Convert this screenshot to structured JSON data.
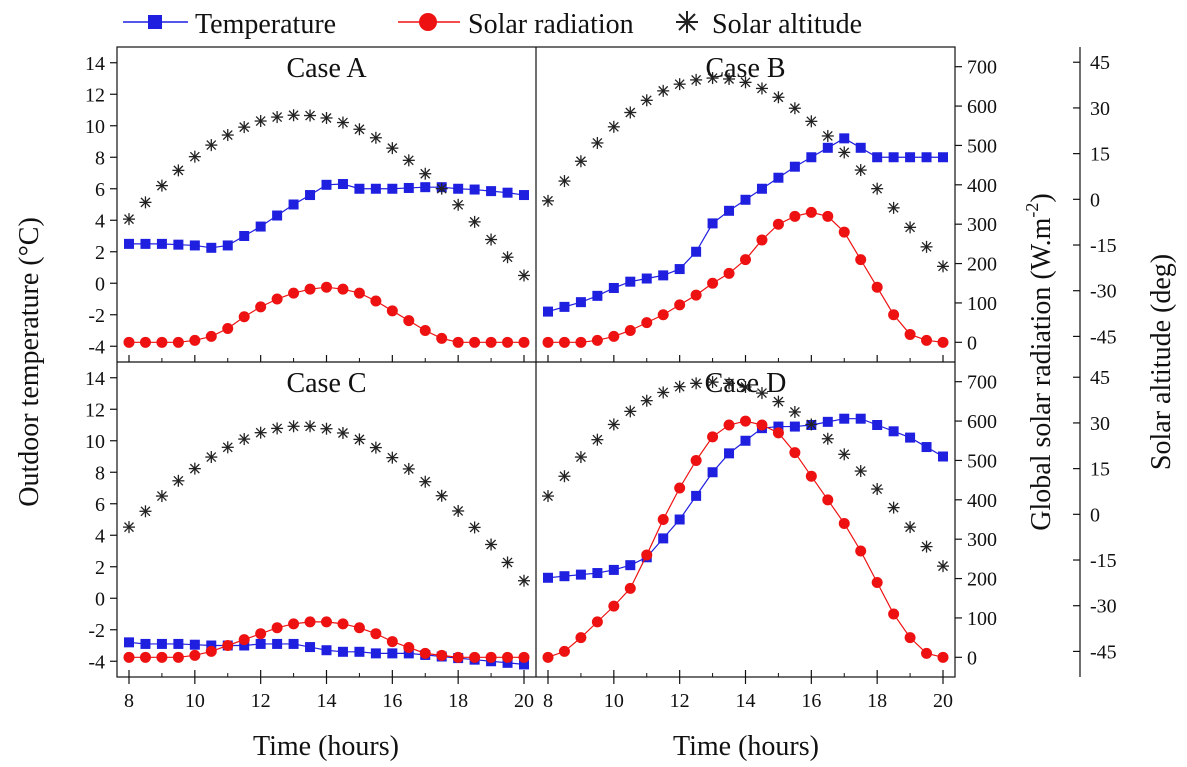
{
  "legend": {
    "temperature": "Temperature",
    "radiation": "Solar radiation",
    "altitude": "Solar altitude"
  },
  "axes": {
    "ylabel_left": "Outdoor temperature (°C)",
    "ylabel_right_radiation": "Global solar radiation (W.m",
    "ylabel_right_radiation_exp": "-2",
    "ylabel_right_radiation_end": ")",
    "ylabel_right_altitude": "Solar altitude (deg)",
    "xlabel": "Time (hours)"
  },
  "colors": {
    "temperature": "#1f1fe0",
    "radiation": "#ee1111",
    "altitude": "#222222"
  },
  "chart_data": [
    {
      "type": "line",
      "title": "Case A",
      "xlim": [
        8,
        20
      ],
      "ylim_temperature": [
        -5,
        15
      ],
      "ylim_radiation": [
        -50,
        750
      ],
      "ylim_altitude": [
        -53.4,
        50
      ],
      "x": [
        8,
        8.5,
        9,
        9.5,
        10,
        10.5,
        11,
        11.5,
        12,
        12.5,
        13,
        13.5,
        14,
        14.5,
        15,
        15.5,
        16,
        16.5,
        17,
        17.5,
        18,
        18.5,
        19,
        19.5,
        20
      ],
      "series": [
        {
          "name": "Temperature",
          "axis": "left",
          "values": [
            2.5,
            2.5,
            2.5,
            2.45,
            2.4,
            2.25,
            2.4,
            3.0,
            3.6,
            4.3,
            5.0,
            5.6,
            6.25,
            6.3,
            6.0,
            6.0,
            6.0,
            6.05,
            6.1,
            6.1,
            6.0,
            5.95,
            5.85,
            5.75,
            5.6
          ]
        },
        {
          "name": "Solar radiation",
          "axis": "radiation",
          "values": [
            0,
            0,
            0,
            0,
            5,
            15,
            35,
            65,
            90,
            110,
            125,
            135,
            140,
            135,
            125,
            105,
            80,
            55,
            30,
            10,
            0,
            0,
            0,
            0,
            0
          ]
        },
        {
          "name": "Solar altitude",
          "axis": "altitude",
          "values": [
            -6.5,
            -1.0,
            4.5,
            9.5,
            14.0,
            17.8,
            21.1,
            23.7,
            25.7,
            27.0,
            27.6,
            27.5,
            26.7,
            25.2,
            23.0,
            20.2,
            16.8,
            12.8,
            8.4,
            3.5,
            -1.8,
            -7.4,
            -13.2,
            -19.0,
            -25.0
          ]
        }
      ]
    },
    {
      "type": "line",
      "title": "Case B",
      "xlim": [
        8,
        20
      ],
      "ylim_temperature": [
        -5,
        15
      ],
      "ylim_radiation": [
        -50,
        750
      ],
      "ylim_altitude": [
        -53.4,
        50
      ],
      "x": [
        8,
        8.5,
        9,
        9.5,
        10,
        10.5,
        11,
        11.5,
        12,
        12.5,
        13,
        13.5,
        14,
        14.5,
        15,
        15.5,
        16,
        16.5,
        17,
        17.5,
        18,
        18.5,
        19,
        19.5,
        20
      ],
      "series": [
        {
          "name": "Temperature",
          "axis": "left",
          "values": [
            -1.8,
            -1.5,
            -1.2,
            -0.8,
            -0.3,
            0.1,
            0.3,
            0.5,
            0.9,
            2.0,
            3.8,
            4.6,
            5.3,
            6.0,
            6.7,
            7.4,
            8.0,
            8.6,
            9.2,
            8.6,
            8.0,
            8.0,
            8.0,
            8.0,
            8.0
          ]
        },
        {
          "name": "Solar radiation",
          "axis": "radiation",
          "values": [
            0,
            0,
            0,
            5,
            15,
            30,
            50,
            70,
            95,
            120,
            150,
            175,
            210,
            260,
            300,
            320,
            330,
            320,
            280,
            210,
            140,
            70,
            20,
            5,
            0
          ]
        },
        {
          "name": "Solar altitude",
          "axis": "altitude",
          "values": [
            -0.5,
            6.0,
            12.5,
            18.5,
            23.8,
            28.5,
            32.5,
            35.6,
            37.8,
            39.2,
            39.8,
            39.5,
            38.4,
            36.4,
            33.5,
            29.9,
            25.6,
            20.8,
            15.4,
            9.6,
            3.5,
            -2.8,
            -9.2,
            -15.6,
            -22.0
          ]
        }
      ]
    },
    {
      "type": "line",
      "title": "Case C",
      "xlim": [
        8,
        20
      ],
      "ylim_temperature": [
        -5,
        15
      ],
      "ylim_radiation": [
        -50,
        750
      ],
      "ylim_altitude": [
        -53.4,
        50
      ],
      "x": [
        8,
        8.5,
        9,
        9.5,
        10,
        10.5,
        11,
        11.5,
        12,
        12.5,
        13,
        13.5,
        14,
        14.5,
        15,
        15.5,
        16,
        16.5,
        17,
        17.5,
        18,
        18.5,
        19,
        19.5,
        20
      ],
      "series": [
        {
          "name": "Temperature",
          "axis": "left",
          "values": [
            -2.8,
            -2.9,
            -2.9,
            -2.9,
            -2.95,
            -3.0,
            -3.0,
            -3.0,
            -2.9,
            -2.9,
            -2.9,
            -3.1,
            -3.3,
            -3.4,
            -3.4,
            -3.5,
            -3.5,
            -3.5,
            -3.6,
            -3.7,
            -3.8,
            -3.9,
            -4.0,
            -4.1,
            -4.2
          ]
        },
        {
          "name": "Solar radiation",
          "axis": "radiation",
          "values": [
            0,
            0,
            0,
            0,
            5,
            15,
            30,
            45,
            60,
            75,
            85,
            90,
            90,
            85,
            75,
            60,
            40,
            25,
            10,
            5,
            0,
            0,
            0,
            0,
            0
          ]
        },
        {
          "name": "Solar altitude",
          "axis": "altitude",
          "values": [
            -4.2,
            1.0,
            6.0,
            11.0,
            15.0,
            18.8,
            22.0,
            24.7,
            26.8,
            28.2,
            28.9,
            28.9,
            28.1,
            26.7,
            24.6,
            21.9,
            18.6,
            14.9,
            10.7,
            6.1,
            1.1,
            -4.3,
            -9.9,
            -15.8,
            -21.8
          ]
        }
      ]
    },
    {
      "type": "line",
      "title": "Case D",
      "xlim": [
        8,
        20
      ],
      "ylim_temperature": [
        -5,
        15
      ],
      "ylim_radiation": [
        -50,
        750
      ],
      "ylim_altitude": [
        -53.4,
        50
      ],
      "x": [
        8,
        8.5,
        9,
        9.5,
        10,
        10.5,
        11,
        11.5,
        12,
        12.5,
        13,
        13.5,
        14,
        14.5,
        15,
        15.5,
        16,
        16.5,
        17,
        17.5,
        18,
        18.5,
        19,
        19.5,
        20
      ],
      "series": [
        {
          "name": "Temperature",
          "axis": "left",
          "values": [
            1.3,
            1.4,
            1.5,
            1.6,
            1.8,
            2.1,
            2.6,
            3.8,
            5.0,
            6.5,
            8.0,
            9.2,
            10.0,
            10.8,
            10.9,
            10.9,
            11.0,
            11.2,
            11.4,
            11.4,
            11.0,
            10.6,
            10.2,
            9.6,
            9.0
          ]
        },
        {
          "name": "Solar radiation",
          "axis": "radiation",
          "values": [
            0,
            15,
            50,
            90,
            130,
            175,
            260,
            350,
            430,
            500,
            560,
            590,
            600,
            590,
            570,
            520,
            460,
            400,
            340,
            270,
            190,
            110,
            50,
            10,
            0
          ]
        },
        {
          "name": "Solar altitude",
          "axis": "altitude",
          "values": [
            6.0,
            12.5,
            18.8,
            24.5,
            29.5,
            33.8,
            37.3,
            40.0,
            41.9,
            43.0,
            43.4,
            43.0,
            41.8,
            39.8,
            37.0,
            33.6,
            29.5,
            24.8,
            19.7,
            14.2,
            8.3,
            2.2,
            -4.2,
            -10.6,
            -17.0
          ]
        }
      ]
    }
  ]
}
